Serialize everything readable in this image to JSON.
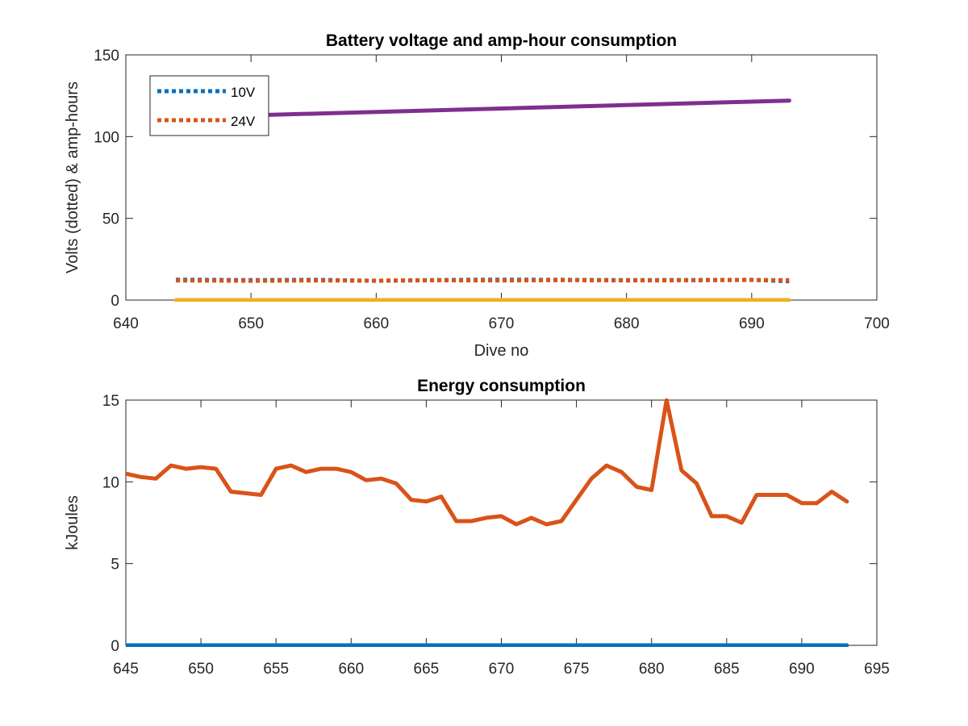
{
  "chart_data": [
    {
      "type": "line",
      "title": "Battery voltage and amp-hour consumption",
      "xlabel": "Dive no",
      "ylabel": "Volts (dotted) & amp-hours",
      "xlim": [
        640,
        700
      ],
      "ylim": [
        0,
        150
      ],
      "xticks": [
        "640",
        "650",
        "660",
        "670",
        "680",
        "690",
        "700"
      ],
      "yticks": [
        "0",
        "50",
        "100",
        "150"
      ],
      "legend_position": "top-left",
      "grid": false,
      "series": [
        {
          "name": "10V",
          "style": "dotted",
          "color": "#0072BD",
          "x": [
            644,
            650,
            655,
            660,
            665,
            670,
            675,
            680,
            685,
            690,
            693
          ],
          "y": [
            12.5,
            12.2,
            12.4,
            11.8,
            12.3,
            12.5,
            12.4,
            12.2,
            12.3,
            12.4,
            11.5
          ]
        },
        {
          "name": "24V",
          "style": "dotted",
          "color": "#D95319",
          "x": [
            644,
            650,
            655,
            660,
            665,
            670,
            675,
            680,
            685,
            690,
            693
          ],
          "y": [
            12.0,
            11.8,
            12.0,
            11.9,
            12.1,
            12.0,
            12.2,
            12.0,
            12.1,
            12.3,
            12.2
          ]
        },
        {
          "style": "solid",
          "color": "#EDB120",
          "x": [
            644,
            693
          ],
          "y": [
            0,
            0
          ]
        },
        {
          "style": "solid",
          "color": "#7E2F8E",
          "x": [
            650,
            693
          ],
          "y": [
            113,
            122
          ]
        }
      ]
    },
    {
      "type": "line",
      "title": "Energy consumption",
      "xlabel": "",
      "ylabel": "kJoules",
      "xlim": [
        645,
        695
      ],
      "ylim": [
        0,
        15
      ],
      "xticks": [
        "645",
        "650",
        "655",
        "660",
        "665",
        "670",
        "675",
        "680",
        "685",
        "690",
        "695"
      ],
      "yticks": [
        "0",
        "5",
        "10",
        "15"
      ],
      "grid": false,
      "series": [
        {
          "style": "solid",
          "color": "#0072BD",
          "x": [
            645,
            693
          ],
          "y": [
            0,
            0
          ]
        },
        {
          "style": "solid",
          "color": "#D95319",
          "x": [
            645,
            646,
            647,
            648,
            649,
            650,
            651,
            652,
            653,
            654,
            655,
            656,
            657,
            658,
            659,
            660,
            661,
            662,
            663,
            664,
            665,
            666,
            667,
            668,
            669,
            670,
            671,
            672,
            673,
            674,
            675,
            676,
            677,
            678,
            679,
            680,
            681,
            682,
            683,
            684,
            685,
            686,
            687,
            688,
            689,
            690,
            691,
            692,
            693
          ],
          "y": [
            10.5,
            10.3,
            10.2,
            11.0,
            10.8,
            10.9,
            10.8,
            9.4,
            9.3,
            9.2,
            10.8,
            11.0,
            10.6,
            10.8,
            10.8,
            10.6,
            10.1,
            10.2,
            9.9,
            8.9,
            8.8,
            9.1,
            7.6,
            7.6,
            7.8,
            7.9,
            7.4,
            7.8,
            7.4,
            7.6,
            8.9,
            10.2,
            11.0,
            10.6,
            9.7,
            9.5,
            15.0,
            10.7,
            9.9,
            7.9,
            7.9,
            7.5,
            9.2,
            9.2,
            9.2,
            8.7,
            8.7,
            9.4,
            8.8
          ]
        }
      ]
    }
  ]
}
